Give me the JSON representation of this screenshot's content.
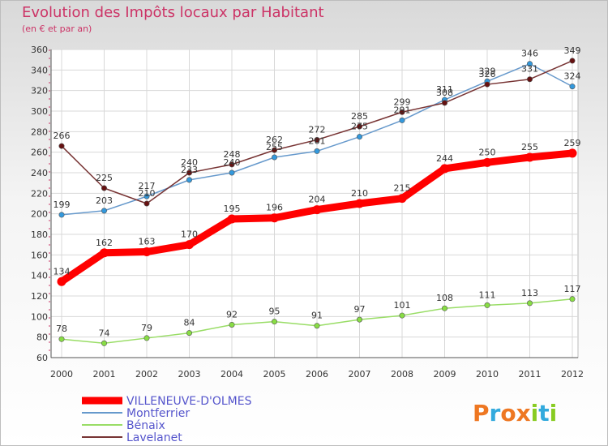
{
  "chart_data": {
    "type": "line",
    "title": "Evolution des Impôts locaux par Habitant",
    "subtitle": "(en € et par an)",
    "xlabel": "",
    "ylabel": "",
    "categories": [
      "2000",
      "2001",
      "2002",
      "2003",
      "2004",
      "2005",
      "2006",
      "2007",
      "2008",
      "2009",
      "2010",
      "2011",
      "2012"
    ],
    "ylim": [
      60,
      360
    ],
    "yticks": [
      60,
      80,
      100,
      120,
      140,
      160,
      180,
      200,
      220,
      240,
      260,
      280,
      300,
      320,
      340,
      360
    ],
    "grid": true,
    "legend_position": "bottom-left",
    "series": [
      {
        "name": "VILLENEUVE-D'OLMES",
        "color": "#ff0000",
        "point_color": "#ff0000",
        "width": 9,
        "values": [
          134,
          162,
          163,
          170,
          195,
          196,
          204,
          210,
          215,
          244,
          250,
          255,
          259
        ]
      },
      {
        "name": "Montferrier",
        "color": "#6699cc",
        "point_color": "#3399dd",
        "width": 1.5,
        "values": [
          199,
          203,
          217,
          233,
          240,
          255,
          261,
          275,
          291,
          311,
          329,
          346,
          324
        ]
      },
      {
        "name": "Bénaix",
        "color": "#99dd66",
        "point_color": "#88dd44",
        "width": 1.5,
        "values": [
          78,
          74,
          79,
          84,
          92,
          95,
          91,
          97,
          101,
          108,
          111,
          113,
          117
        ]
      },
      {
        "name": "Lavelanet",
        "color": "#773333",
        "point_color": "#661111",
        "width": 1.5,
        "values": [
          266,
          225,
          210,
          240,
          248,
          262,
          272,
          285,
          299,
          308,
          326,
          331,
          349
        ]
      }
    ]
  },
  "logo": {
    "text": "Proxiti",
    "letters": [
      "P",
      "r",
      "o",
      "x",
      "i",
      "t",
      "i"
    ],
    "colors": [
      "#ee7722",
      "#33aadd",
      "#ee7722",
      "#ee7722",
      "#88cc22",
      "#33aadd",
      "#88cc22"
    ]
  }
}
